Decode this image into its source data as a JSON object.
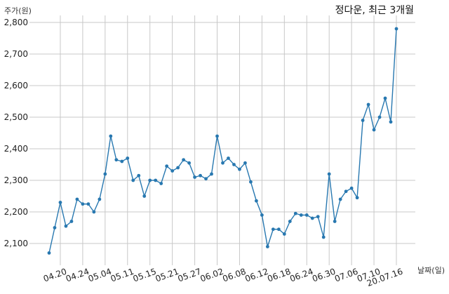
{
  "chart_data": {
    "type": "line",
    "title": "정다운, 최근 3개월",
    "ylabel": "주가(원)",
    "xlabel": "날짜(일)",
    "ylim": [
      2040,
      2820
    ],
    "yticks": [
      2100,
      2200,
      2300,
      2400,
      2500,
      2600,
      2700,
      2800
    ],
    "ytick_labels": [
      "2,100",
      "2,200",
      "2,300",
      "2,400",
      "2,500",
      "2,600",
      "2,700",
      "2,800"
    ],
    "xtick_labels": [
      "04.20",
      "04.24",
      "05.04",
      "05.11",
      "05.15",
      "05.21",
      "05.27",
      "06.02",
      "06.08",
      "06.12",
      "06.18",
      "06.24",
      "06.30",
      "07.06",
      "07.10",
      "20.07.16"
    ],
    "xtick_index": [
      2,
      6,
      10,
      14,
      18,
      22,
      26,
      30,
      34,
      38,
      42,
      46,
      50,
      54,
      58,
      62
    ],
    "grid": true,
    "series_color": "#2878b0",
    "series": [
      {
        "values": [
          2070,
          2150,
          2230,
          2155,
          2170,
          2240,
          2225,
          2225,
          2200,
          2240,
          2320,
          2440,
          2365,
          2360,
          2370,
          2300,
          2315,
          2250,
          2300,
          2300,
          2290,
          2345,
          2330,
          2340,
          2365,
          2355,
          2310,
          2315,
          2305,
          2320,
          2440,
          2355,
          2370,
          2350,
          2335,
          2355,
          2295,
          2235,
          2190,
          2090,
          2145,
          2145,
          2130,
          2170,
          2195,
          2190,
          2190,
          2180,
          2185,
          2120,
          2320,
          2170,
          2240,
          2265,
          2275,
          2245,
          2490,
          2540,
          2460,
          2500,
          2560,
          2485,
          2780
        ]
      }
    ]
  }
}
